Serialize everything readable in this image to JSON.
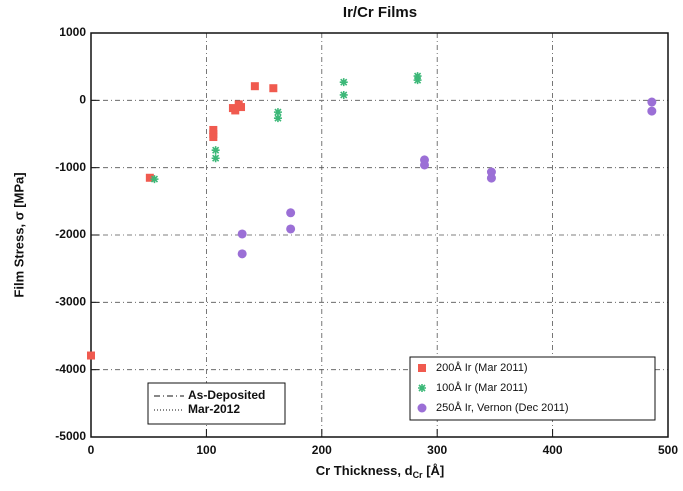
{
  "chart_data": {
    "type": "scatter",
    "title": "Ir/Cr Films",
    "x_label": {
      "text": "Cr Thickness, d",
      "subscript": "Cr",
      "suffix": " [Å]"
    },
    "y_label": "Film Stress, σ [MPa]",
    "xlim": [
      0,
      500
    ],
    "xticks": [
      0,
      100,
      200,
      300,
      400,
      500
    ],
    "ylim": [
      -5000,
      1000
    ],
    "yticks": [
      -5000,
      -4000,
      -3000,
      -2000,
      -1000,
      0,
      1000
    ],
    "grid": true,
    "line_legend": [
      {
        "label": "As-Deposited",
        "dash": "6 3 1 3"
      },
      {
        "label": "Mar-2012",
        "dash": "1 2"
      }
    ],
    "series": [
      {
        "name": "200Å Ir (Mar 2011)",
        "color": "#f05a4f",
        "marker": "square",
        "x": [
          0,
          51,
          106,
          106,
          106,
          123,
          125,
          128,
          130,
          142,
          158
        ],
        "values": [
          -3790,
          -1150,
          -440,
          -500,
          -545,
          -115,
          -150,
          -60,
          -100,
          210,
          180
        ]
      },
      {
        "name": "100Å Ir (Mar 2011)",
        "color": "#3cb878",
        "marker": "star",
        "x": [
          55,
          108,
          108,
          162,
          162,
          219,
          219,
          283,
          283
        ],
        "values": [
          -1170,
          -740,
          -860,
          -175,
          -265,
          270,
          80,
          360,
          300
        ]
      },
      {
        "name": "250Å Ir, Vernon (Dec 2011)",
        "color": "#9b6fd6",
        "marker": "circle",
        "x": [
          131,
          131,
          173,
          173,
          289,
          289,
          347,
          347,
          486,
          486
        ],
        "values": [
          -1985,
          -2280,
          -1670,
          -1910,
          -885,
          -960,
          -1065,
          -1155,
          -25,
          -160
        ]
      }
    ]
  }
}
